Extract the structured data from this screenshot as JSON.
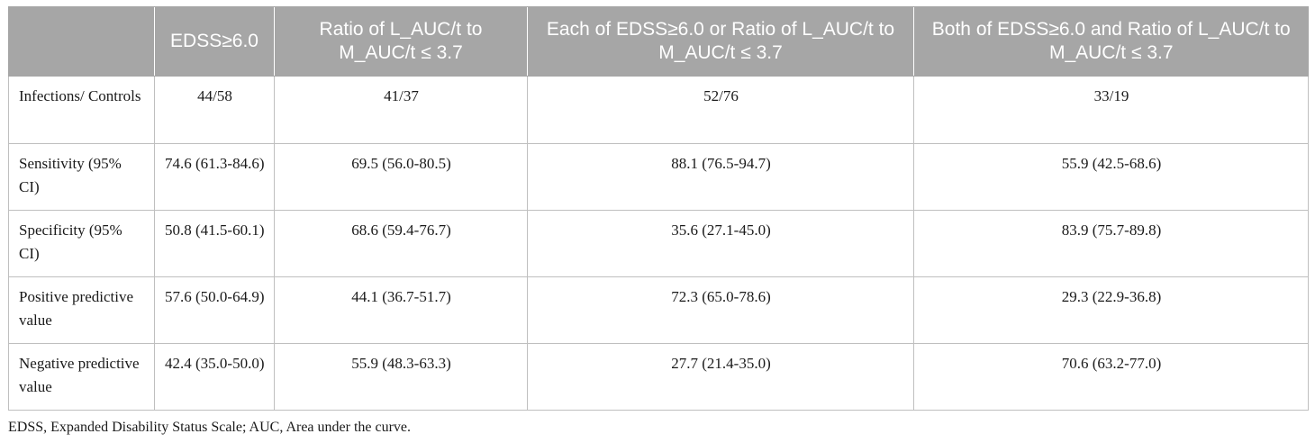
{
  "table": {
    "headers": [
      "",
      "EDSS≥6.0",
      "Ratio of L_AUC/t to M_AUC/t ≤ 3.7",
      "Each of EDSS≥6.0 or Ratio of L_AUC/t to M_AUC/t ≤ 3.7",
      "Both of EDSS≥6.0 and Ratio of L_AUC/t to M_AUC/t ≤ 3.7"
    ],
    "rows": [
      {
        "label": "Infections/ Controls",
        "values": [
          "44/58",
          "41/37",
          "52/76",
          "33/19"
        ]
      },
      {
        "label": "Sensitivity (95% CI)",
        "values": [
          "74.6 (61.3-84.6)",
          "69.5 (56.0-80.5)",
          "88.1 (76.5-94.7)",
          "55.9 (42.5-68.6)"
        ]
      },
      {
        "label": "Specificity (95% CI)",
        "values": [
          "50.8 (41.5-60.1)",
          "68.6 (59.4-76.7)",
          "35.6 (27.1-45.0)",
          "83.9 (75.7-89.8)"
        ]
      },
      {
        "label": "Positive predictive value",
        "values": [
          "57.6 (50.0-64.9)",
          "44.1 (36.7-51.7)",
          "72.3 (65.0-78.6)",
          "29.3 (22.9-36.8)"
        ]
      },
      {
        "label": "Negative predictive value",
        "values": [
          "42.4 (35.0-50.0)",
          "55.9 (48.3-63.3)",
          "27.7 (21.4-35.0)",
          "70.6 (63.2-77.0)"
        ]
      }
    ]
  },
  "footnote": "EDSS, Expanded Disability Status Scale; AUC, Area under the curve."
}
